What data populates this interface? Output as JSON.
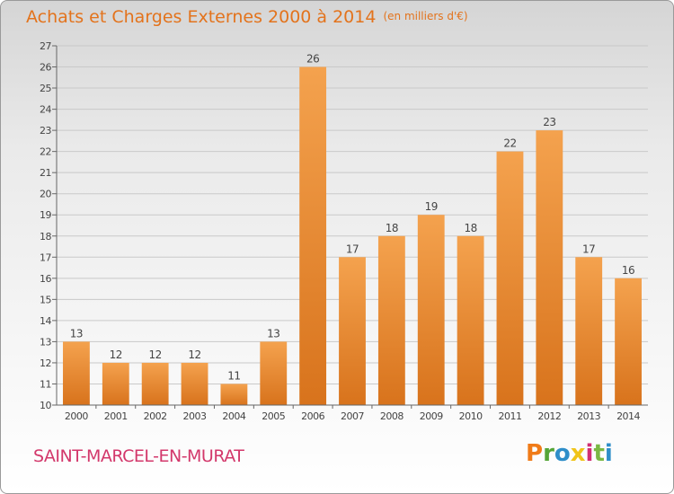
{
  "header": {
    "title": "Achats et Charges Externes 2000 à 2014",
    "unit": "(en milliers d'€)"
  },
  "footer": {
    "city": "SAINT-MARCEL-EN-MURAT",
    "logo": "Proxiti",
    "logo_letters": [
      {
        "char": "P",
        "color": "#f07b18"
      },
      {
        "char": "r",
        "color": "#55a537"
      },
      {
        "char": "o",
        "color": "#2e8ec9"
      },
      {
        "char": "x",
        "color": "#f0c419"
      },
      {
        "char": "i",
        "color": "#d12e73"
      },
      {
        "char": "t",
        "color": "#7ab843"
      },
      {
        "char": "i",
        "color": "#2e8ec9"
      }
    ]
  },
  "chart_data": {
    "type": "bar",
    "categories": [
      "2000",
      "2001",
      "2002",
      "2003",
      "2004",
      "2005",
      "2006",
      "2007",
      "2008",
      "2009",
      "2010",
      "2011",
      "2012",
      "2013",
      "2014"
    ],
    "values": [
      13,
      12,
      12,
      12,
      11,
      13,
      26,
      17,
      18,
      19,
      18,
      22,
      23,
      17,
      16
    ],
    "ylim": [
      10,
      27
    ],
    "yticks": [
      10,
      11,
      12,
      13,
      14,
      15,
      16,
      17,
      18,
      19,
      20,
      21,
      22,
      23,
      24,
      25,
      26,
      27
    ],
    "bar_color_top": "#f4a24e",
    "bar_color_bottom": "#d8731c",
    "grid": "horizontal",
    "xlabel": "",
    "ylabel": ""
  }
}
